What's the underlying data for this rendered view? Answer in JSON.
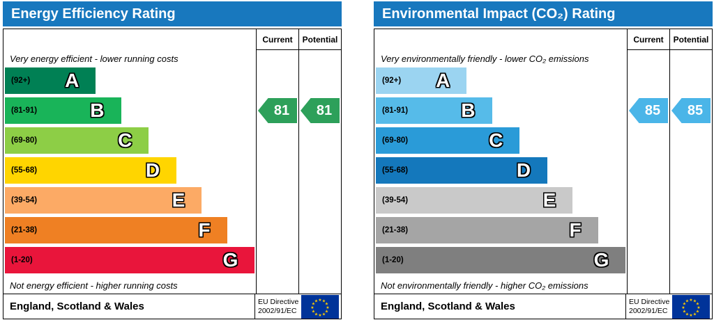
{
  "columns": {
    "current": "Current",
    "potential": "Potential"
  },
  "footer": {
    "region": "England, Scotland & Wales",
    "directive_line1": "EU Directive",
    "directive_line2": "2002/91/EC"
  },
  "left_chart": {
    "title": "Energy Efficiency Rating",
    "header_color": "#1878be",
    "top_note": "Very energy efficient - lower running costs",
    "bottom_note": "Not energy efficient - higher running costs",
    "bands": [
      {
        "letter": "A",
        "range": "(92+)",
        "color": "#008054",
        "width_pct": 36
      },
      {
        "letter": "B",
        "range": "(81-91)",
        "color": "#19b459",
        "width_pct": 46
      },
      {
        "letter": "C",
        "range": "(69-80)",
        "color": "#8dce46",
        "width_pct": 57
      },
      {
        "letter": "D",
        "range": "(55-68)",
        "color": "#ffd500",
        "width_pct": 68
      },
      {
        "letter": "E",
        "range": "(39-54)",
        "color": "#fcaa65",
        "width_pct": 78
      },
      {
        "letter": "F",
        "range": "(21-38)",
        "color": "#ef8023",
        "width_pct": 88
      },
      {
        "letter": "G",
        "range": "(1-20)",
        "color": "#e9153b",
        "width_pct": 99
      }
    ],
    "current_value": "81",
    "potential_value": "81",
    "arrow_color": "#2da05a",
    "current_band_index": 1,
    "potential_band_index": 1
  },
  "right_chart": {
    "title": "Environmental Impact (CO₂) Rating",
    "header_color": "#1878be",
    "top_note": "Very environmentally friendly - lower CO₂ emissions",
    "bottom_note": "Not environmentally friendly - higher CO₂ emissions",
    "bands": [
      {
        "letter": "A",
        "range": "(92+)",
        "color": "#9bd4f1",
        "width_pct": 36
      },
      {
        "letter": "B",
        "range": "(81-91)",
        "color": "#56bbe9",
        "width_pct": 46
      },
      {
        "letter": "C",
        "range": "(69-80)",
        "color": "#2a9bd8",
        "width_pct": 57
      },
      {
        "letter": "D",
        "range": "(55-68)",
        "color": "#1478bc",
        "width_pct": 68
      },
      {
        "letter": "E",
        "range": "(39-54)",
        "color": "#c9c9c9",
        "width_pct": 78
      },
      {
        "letter": "F",
        "range": "(21-38)",
        "color": "#a5a5a5",
        "width_pct": 88
      },
      {
        "letter": "G",
        "range": "(1-20)",
        "color": "#7f7f7f",
        "width_pct": 99
      }
    ],
    "current_value": "85",
    "potential_value": "85",
    "arrow_color": "#4ab5e8",
    "current_band_index": 1,
    "potential_band_index": 1
  },
  "chart_data": [
    {
      "type": "bar",
      "title": "Energy Efficiency Rating",
      "categories": [
        "A (92+)",
        "B (81-91)",
        "C (69-80)",
        "D (55-68)",
        "E (39-54)",
        "F (21-38)",
        "G (1-20)"
      ],
      "values": [
        36,
        46,
        57,
        68,
        78,
        88,
        99
      ],
      "values_note": "relative band bar lengths, % of scale width",
      "current": 81,
      "potential": 81,
      "current_band": "B",
      "potential_band": "B",
      "top_label": "Very energy efficient - lower running costs",
      "bottom_label": "Not energy efficient - higher running costs",
      "region": "England, Scotland & Wales",
      "directive": "EU Directive 2002/91/EC"
    },
    {
      "type": "bar",
      "title": "Environmental Impact (CO₂) Rating",
      "categories": [
        "A (92+)",
        "B (81-91)",
        "C (69-80)",
        "D (55-68)",
        "E (39-54)",
        "F (21-38)",
        "G (1-20)"
      ],
      "values": [
        36,
        46,
        57,
        68,
        78,
        88,
        99
      ],
      "values_note": "relative band bar lengths, % of scale width",
      "current": 85,
      "potential": 85,
      "current_band": "B",
      "potential_band": "B",
      "top_label": "Very environmentally friendly - lower CO₂ emissions",
      "bottom_label": "Not environmentally friendly - higher CO₂ emissions",
      "region": "England, Scotland & Wales",
      "directive": "EU Directive 2002/91/EC"
    }
  ]
}
